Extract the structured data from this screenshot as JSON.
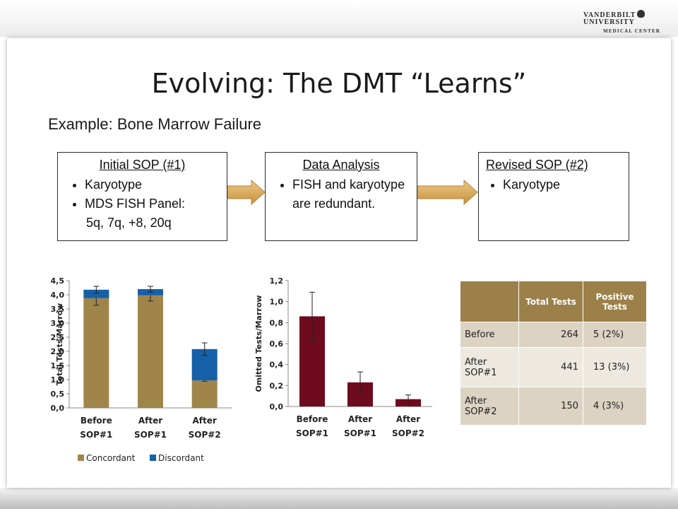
{
  "slide": {
    "title": "Evolving: The DMT “Learns”",
    "subtitle": "Example: Bone Marrow Failure",
    "logo": {
      "line1_left": "VANDERBILT",
      "line1_right": "UNIVERSITY",
      "line2": "MEDICAL CENTER"
    }
  },
  "boxes": [
    {
      "head": "Initial SOP (#1)",
      "items": [
        "Karyotype",
        "MDS FISH Panel:"
      ],
      "continuation": "5q, 7q, +8, 20q"
    },
    {
      "head": "Data Analysis",
      "items": [
        "FISH and karyotype are redundant."
      ]
    },
    {
      "head": "Revised SOP (#2)",
      "items": [
        "Karyotype"
      ]
    }
  ],
  "colors": {
    "concordant": "#a0854b",
    "discordant": "#1660a8",
    "omitted": "#6e0a1e",
    "arrow": "#d9a955",
    "table_header": "#9b8049"
  },
  "chart_data": [
    {
      "type": "bar",
      "stacked": true,
      "categories": [
        "Before SOP#1",
        "After SOP#1",
        "After SOP#2"
      ],
      "category_lines": [
        [
          "Before",
          "SOP#1"
        ],
        [
          "After",
          "SOP#1"
        ],
        [
          "After",
          "SOP#2"
        ]
      ],
      "series": [
        {
          "name": "Concordant",
          "values": [
            3.88,
            3.98,
            0.97
          ],
          "error": [
            0.25,
            0.2,
            0.03
          ]
        },
        {
          "name": "Discordant",
          "values": [
            0.3,
            0.22,
            1.11
          ],
          "error": [
            0.12,
            0.1,
            0.22
          ]
        }
      ],
      "ylabel": "Total Tests/Marrow",
      "ylim": [
        0,
        4.5
      ],
      "yticks": [
        "0,0",
        "0,5",
        "1,0",
        "1,5",
        "2,0",
        "2,5",
        "3,0",
        "3,5",
        "4,0",
        "4,5"
      ],
      "legend": "bottom"
    },
    {
      "type": "bar",
      "categories": [
        "Before SOP#1",
        "After SOP#1",
        "After SOP#2"
      ],
      "category_lines": [
        [
          "Before",
          "SOP#1"
        ],
        [
          "After",
          "SOP#1"
        ],
        [
          "After",
          "SOP#2"
        ]
      ],
      "series": [
        {
          "values": [
            0.86,
            0.23,
            0.07
          ],
          "error": [
            0.23,
            0.1,
            0.04
          ]
        }
      ],
      "ylabel": "Omitted Tests/Marrow",
      "ylim": [
        0,
        1.2
      ],
      "yticks": [
        "0,0",
        "0,2",
        "0,4",
        "0,6",
        "0,8",
        "1,0",
        "1,2"
      ]
    },
    {
      "type": "table",
      "columns": [
        "",
        "Total Tests",
        "Positive Tests"
      ],
      "rows": [
        [
          "Before",
          "264",
          "5 (2%)"
        ],
        [
          "After SOP#1",
          "441",
          "13 (3%)"
        ],
        [
          "After SOP#2",
          "150",
          "4 (3%)"
        ]
      ]
    }
  ]
}
